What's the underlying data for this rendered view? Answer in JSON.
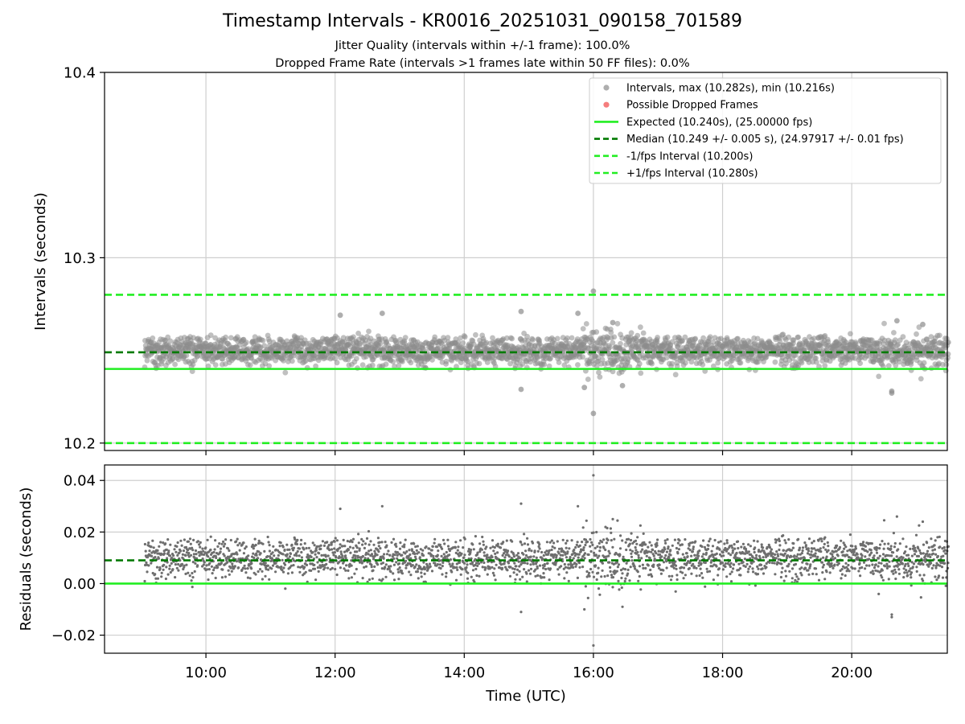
{
  "chart_data": [
    {
      "type": "scatter",
      "panel": "intervals",
      "title": "Timestamp Intervals - KR0016_20251031_090158_701589",
      "subtitle_lines": [
        "Jitter Quality (intervals within +/-1 frame): 100.0%",
        "Dropped Frame Rate (intervals >1 frames late within 50 FF files): 0.0%"
      ],
      "xlabel": "",
      "ylabel": "Intervals (seconds)",
      "xlim_hours": [
        8.43,
        21.48
      ],
      "ylim": [
        10.196,
        10.4
      ],
      "yticks": [
        10.2,
        10.3,
        10.4
      ],
      "ytick_labels": [
        "10.2",
        "10.3",
        "10.4"
      ],
      "grid": true,
      "legend_position": "upper right",
      "legend": [
        {
          "label": "Intervals, max (10.282s), min (10.216s)",
          "kind": "marker",
          "color": "#9a9a9a"
        },
        {
          "label": "Possible Dropped Frames",
          "kind": "marker",
          "color": "#f25c5c"
        },
        {
          "label": "Expected (10.240s), (25.00000 fps)",
          "kind": "line",
          "color": "#22ee22",
          "dash": "solid"
        },
        {
          "label": "Median (10.249 +/- 0.005 s), (24.97917 +/- 0.01 fps)",
          "kind": "line",
          "color": "#007a00",
          "dash": "dashed"
        },
        {
          "label": "-1/fps Interval (10.200s)",
          "kind": "line",
          "color": "#22ee22",
          "dash": "dashed"
        },
        {
          "label": "+1/fps Interval (10.280s)",
          "kind": "line",
          "color": "#22ee22",
          "dash": "dashed"
        }
      ],
      "reference_lines": {
        "expected": 10.24,
        "median": 10.249,
        "minus_one_fps": 10.2,
        "plus_one_fps": 10.28
      },
      "series": [
        {
          "name": "Intervals",
          "time_range_hours": [
            9.05,
            21.5
          ],
          "typical_band": [
            10.236,
            10.262
          ],
          "max": 10.282,
          "min": 10.216,
          "notable_points": [
            {
              "t": 16.0,
              "y": 10.282
            },
            {
              "t": 16.0,
              "y": 10.216
            },
            {
              "t": 12.73,
              "y": 10.27
            },
            {
              "t": 14.88,
              "y": 10.271
            },
            {
              "t": 15.76,
              "y": 10.27
            },
            {
              "t": 12.08,
              "y": 10.269
            },
            {
              "t": 20.7,
              "y": 10.266
            },
            {
              "t": 21.1,
              "y": 10.264
            },
            {
              "t": 16.3,
              "y": 10.265
            },
            {
              "t": 14.88,
              "y": 10.229
            },
            {
              "t": 15.86,
              "y": 10.23
            },
            {
              "t": 20.62,
              "y": 10.228
            },
            {
              "t": 20.62,
              "y": 10.227
            },
            {
              "t": 16.45,
              "y": 10.231
            }
          ]
        },
        {
          "name": "Possible Dropped Frames",
          "points": []
        }
      ]
    },
    {
      "type": "scatter",
      "panel": "residuals",
      "xlabel": "Time (UTC)",
      "ylabel": "Residuals (seconds)",
      "xlim_hours": [
        8.43,
        21.48
      ],
      "ylim": [
        -0.027,
        0.046
      ],
      "yticks": [
        -0.02,
        0.0,
        0.02,
        0.04
      ],
      "ytick_labels": [
        "−0.02",
        "0.00",
        "0.02",
        "0.04"
      ],
      "xticks_hours": [
        10,
        12,
        14,
        16,
        18,
        20
      ],
      "xtick_labels": [
        "10:00",
        "12:00",
        "14:00",
        "16:00",
        "18:00",
        "20:00"
      ],
      "grid": true,
      "reference_lines": {
        "zero": 0.0,
        "median_offset": 0.009
      },
      "series": [
        {
          "name": "Residuals",
          "time_range_hours": [
            9.05,
            21.5
          ],
          "typical_band": [
            -0.004,
            0.022
          ],
          "max": 0.042,
          "min": -0.024
        }
      ]
    }
  ]
}
